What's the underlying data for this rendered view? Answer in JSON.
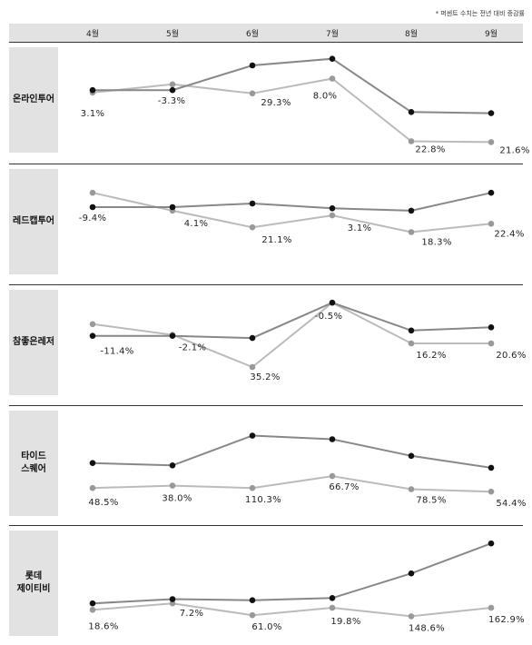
{
  "note": "* 퍼센트 수치는 전년 대비 증감률",
  "months": [
    "4월",
    "5월",
    "6월",
    "7월",
    "8월",
    "9월"
  ],
  "colors": {
    "dark": "#888888",
    "light": "#bbbbbb",
    "dark_dot": "#111111",
    "light_dot": "#999999",
    "label_bg": "#e2e2e2"
  },
  "chart_data": [
    {
      "type": "line",
      "title": "온라인투어",
      "categories": [
        "4월",
        "5월",
        "6월",
        "7월",
        "8월",
        "9월"
      ],
      "series": [
        {
          "values": [
            28,
            28,
            58,
            66,
            1.5,
            0
          ]
        },
        {
          "values": [
            25,
            35,
            24,
            42,
            -34,
            -35
          ]
        }
      ],
      "labels": [
        "3.1%",
        "-3.3%",
        "29.3%",
        "8.0%",
        "22.8%",
        "21.6%"
      ],
      "ylim": [
        -50,
        80
      ]
    },
    {
      "type": "line",
      "title": "레드캡투어",
      "categories": [
        "4월",
        "5월",
        "6월",
        "7월",
        "8월",
        "9월"
      ],
      "series": [
        {
          "values": [
            38,
            38,
            41,
            37,
            35,
            50
          ]
        },
        {
          "values": [
            50,
            35,
            21,
            31,
            17,
            24
          ]
        }
      ],
      "labels": [
        "-9.4%",
        "4.1%",
        "21.1%",
        "3.1%",
        "18.3%",
        "22.4%"
      ],
      "ylim": [
        -20,
        70
      ]
    },
    {
      "type": "line",
      "title": "참좋은레저",
      "categories": [
        "4월",
        "5월",
        "6월",
        "7월",
        "8월",
        "9월"
      ],
      "series": [
        {
          "values": [
            27,
            27,
            25,
            58,
            32,
            35
          ]
        },
        {
          "values": [
            38,
            28,
            -2,
            58,
            20,
            20
          ]
        }
      ],
      "labels": [
        "-11.4%",
        "-2.1%",
        "35.2%",
        "-0.5%",
        "16.2%",
        "20.6%"
      ],
      "ylim": [
        -30,
        70
      ]
    },
    {
      "type": "line",
      "title": "타이드\n스퀘어",
      "categories": [
        "4월",
        "5월",
        "6월",
        "7월",
        "8월",
        "9월"
      ],
      "series": [
        {
          "values": [
            26,
            24,
            49,
            46,
            32,
            22
          ]
        },
        {
          "values": [
            5,
            7,
            5,
            15,
            4,
            2
          ]
        }
      ],
      "labels": [
        "48.5%",
        "38.0%",
        "110.3%",
        "66.7%",
        "78.5%",
        "54.4%"
      ],
      "ylim": [
        -20,
        70
      ]
    },
    {
      "type": "line",
      "title": "롯데\n제이티비",
      "categories": [
        "4월",
        "5월",
        "6월",
        "7월",
        "8월",
        "9월"
      ],
      "series": [
        {
          "values": [
            12,
            16,
            15,
            17,
            40,
            68
          ]
        },
        {
          "values": [
            6,
            12,
            1,
            8,
            0,
            8
          ]
        }
      ],
      "labels": [
        "18.6%",
        "7.2%",
        "61.0%",
        "19.8%",
        "148.6%",
        "162.9%"
      ],
      "ylim": [
        -20,
        80
      ]
    }
  ]
}
